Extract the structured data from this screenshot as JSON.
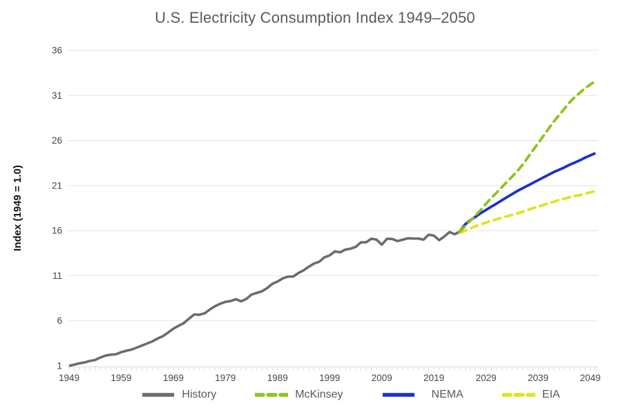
{
  "title": "U.S. Electricity Consumption Index 1949–2050",
  "axes": {
    "y_label": "Index (1949 = 1.0)",
    "y_ticks": [
      36,
      31,
      26,
      21,
      16,
      11,
      6,
      1
    ],
    "x_ticks": [
      1949,
      1959,
      1969,
      1979,
      1989,
      1999,
      2009,
      2019,
      2029,
      2039,
      2049
    ],
    "x_minor_tick_step_years": 1
  },
  "colors": {
    "grid": "#e7e7e7",
    "axis_line": "#d8d8d8",
    "tick_label": "#454545",
    "y_axis_label": "#111111",
    "title": "#58595b",
    "legend_label": "#595959",
    "history": "#6b6b6b",
    "mckinsey": "#8fc31c",
    "nema": "#1b32c8",
    "eia": "#e0e318"
  },
  "legend": {
    "items": [
      {
        "label": "History",
        "color": "#6b6b6b",
        "dashed": false
      },
      {
        "label": "McKinsey",
        "color": "#8fc31c",
        "dashed": true
      },
      {
        "label": "NEMA",
        "color": "#1b32c8",
        "dashed": false
      },
      {
        "label": "EIA",
        "color": "#e0e318",
        "dashed": true
      }
    ]
  },
  "chart_data": {
    "type": "line",
    "title": "U.S. Electricity Consumption Index 1949–2050",
    "xlabel": "",
    "ylabel": "Index (1949 = 1.0)",
    "xlim": [
      1949,
      2050
    ],
    "ylim": [
      1,
      36
    ],
    "grid": "horizontal",
    "legend_position": "bottom",
    "series": [
      {
        "name": "History",
        "style": "solid",
        "color": "#6b6b6b",
        "x_start": 1949,
        "x_step": 1,
        "values": [
          1.0,
          1.13,
          1.28,
          1.38,
          1.54,
          1.65,
          1.93,
          2.14,
          2.24,
          2.29,
          2.52,
          2.68,
          2.81,
          3.03,
          3.25,
          3.49,
          3.72,
          4.04,
          4.29,
          4.69,
          5.12,
          5.44,
          5.74,
          6.23,
          6.7,
          6.67,
          6.83,
          7.25,
          7.62,
          7.89,
          8.1,
          8.19,
          8.4,
          8.16,
          8.42,
          8.91,
          9.09,
          9.27,
          9.62,
          10.09,
          10.36,
          10.7,
          10.9,
          10.91,
          11.3,
          11.6,
          12.0,
          12.35,
          12.55,
          13.05,
          13.25,
          13.7,
          13.6,
          13.9,
          14.0,
          14.2,
          14.7,
          14.72,
          15.1,
          15.0,
          14.45,
          15.1,
          15.08,
          14.85,
          15.0,
          15.15,
          15.12,
          15.13,
          15.0,
          15.55,
          15.45,
          14.95,
          15.35,
          15.85,
          15.6,
          15.9
        ]
      },
      {
        "name": "McKinsey",
        "style": "dashed",
        "color": "#8fc31c",
        "x_start": 2024,
        "x_step": 1,
        "values": [
          15.9,
          16.5,
          17.1,
          17.7,
          18.3,
          19.0,
          19.6,
          20.2,
          20.8,
          21.4,
          22.0,
          22.6,
          23.3,
          24.1,
          24.9,
          25.7,
          26.5,
          27.3,
          28.1,
          28.8,
          29.5,
          30.2,
          30.8,
          31.3,
          31.8,
          32.2,
          32.6
        ]
      },
      {
        "name": "NEMA",
        "style": "solid",
        "color": "#1b32c8",
        "x_start": 2024,
        "x_step": 1,
        "values": [
          15.9,
          16.7,
          17.15,
          17.55,
          17.95,
          18.3,
          18.65,
          19.0,
          19.35,
          19.7,
          20.05,
          20.4,
          20.7,
          21.0,
          21.3,
          21.6,
          21.9,
          22.2,
          22.5,
          22.75,
          23.0,
          23.3,
          23.55,
          23.8,
          24.1,
          24.35,
          24.6
        ]
      },
      {
        "name": "EIA",
        "style": "dashed",
        "color": "#e0e318",
        "x_start": 2024,
        "x_step": 1,
        "values": [
          15.75,
          16.0,
          16.25,
          16.5,
          16.7,
          16.9,
          17.1,
          17.25,
          17.45,
          17.6,
          17.75,
          17.9,
          18.1,
          18.3,
          18.5,
          18.65,
          18.85,
          19.05,
          19.2,
          19.4,
          19.55,
          19.7,
          19.85,
          19.95,
          20.1,
          20.25,
          20.4
        ]
      }
    ]
  }
}
